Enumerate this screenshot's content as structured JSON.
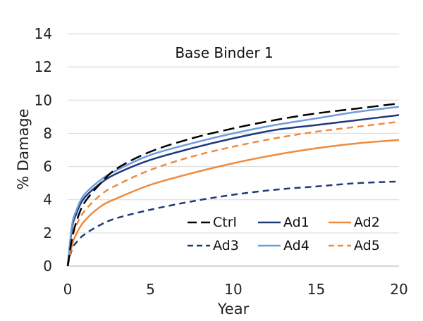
{
  "chart_data": {
    "type": "line",
    "title": "Base Binder 1",
    "xlabel": "Year",
    "ylabel": "% Damage",
    "xlim": [
      0,
      20
    ],
    "ylim": [
      0,
      14
    ],
    "xticks": [
      0,
      5,
      10,
      15,
      20
    ],
    "yticks": [
      0,
      2,
      4,
      6,
      8,
      10,
      12,
      14
    ],
    "grid": "horizontal",
    "legend_position": "bottom-right, inside",
    "x": [
      0,
      0.25,
      0.5,
      1,
      2,
      3,
      5,
      7.5,
      10,
      12.5,
      15,
      17.5,
      20
    ],
    "series": [
      {
        "name": "Ctrl",
        "color": "#000000",
        "dash": "dashed",
        "values": [
          0,
          1.6,
          2.6,
          3.8,
          5.0,
          5.9,
          6.9,
          7.7,
          8.3,
          8.8,
          9.2,
          9.5,
          9.8
        ]
      },
      {
        "name": "Ad1",
        "color": "#1f3a7a",
        "dash": "solid",
        "values": [
          0,
          2.2,
          3.1,
          4.1,
          5.0,
          5.6,
          6.4,
          7.1,
          7.7,
          8.2,
          8.5,
          8.8,
          9.1
        ]
      },
      {
        "name": "Ad2",
        "color": "#f08a3c",
        "dash": "solid",
        "values": [
          0,
          1.2,
          1.9,
          2.7,
          3.6,
          4.1,
          4.9,
          5.6,
          6.2,
          6.7,
          7.1,
          7.4,
          7.6
        ]
      },
      {
        "name": "Ad3",
        "color": "#1f3a7a",
        "dash": "dashed",
        "values": [
          0,
          1.0,
          1.4,
          1.9,
          2.5,
          2.9,
          3.4,
          3.9,
          4.3,
          4.6,
          4.8,
          5.0,
          5.1
        ]
      },
      {
        "name": "Ad4",
        "color": "#6f9ddc",
        "dash": "solid",
        "values": [
          0,
          2.4,
          3.3,
          4.3,
          5.2,
          5.8,
          6.7,
          7.4,
          8.0,
          8.5,
          8.9,
          9.3,
          9.6
        ]
      },
      {
        "name": "Ad5",
        "color": "#f08a3c",
        "dash": "dashed",
        "values": [
          0,
          1.6,
          2.4,
          3.3,
          4.3,
          4.9,
          5.8,
          6.6,
          7.2,
          7.7,
          8.1,
          8.4,
          8.7
        ]
      }
    ]
  }
}
